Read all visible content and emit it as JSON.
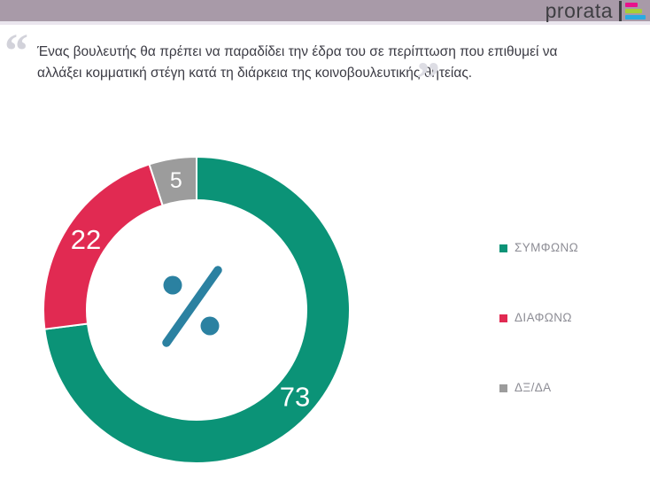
{
  "header": {
    "brand": "prorata",
    "logo_colors": {
      "background": "#a89aa8",
      "text": "#3e3e42",
      "bar_pink": "#e8128c",
      "bar_green": "#a6ce39",
      "bar_blue": "#29abe2"
    }
  },
  "question": {
    "text": "Ένας βουλευτής θα πρέπει να παραδίδει την έδρα του σε περίπτωση που επιθυμεί να αλλάξει κομματική στέγη κατά τη διάρκεια της κοινοβουλευτικής θητείας.",
    "open_quote": "“",
    "close_quote": "”"
  },
  "chart_data": {
    "type": "pie",
    "subtype": "donut",
    "unit": "%",
    "title": "",
    "categories": [
      "ΣΥΜΦΩΝΩ",
      "ΔΙΑΦΩΝΩ",
      "ΔΞ/ΔΑ"
    ],
    "values": [
      73,
      22,
      5
    ],
    "colors": [
      "#0b9377",
      "#e12a52",
      "#9c9c9c"
    ],
    "start_angle_deg": 0,
    "direction": "clockwise",
    "slice_label_color": "#ffffff",
    "slice_separator_color": "#ffffff",
    "center_symbol": "%",
    "center_symbol_color": "#2b81a1",
    "legend_position": "right"
  },
  "legend": {
    "items": [
      {
        "label": "ΣΥΜΦΩΝΩ",
        "color": "#0b9377"
      },
      {
        "label": "ΔΙΑΦΩΝΩ",
        "color": "#e12a52"
      },
      {
        "label": "ΔΞ/ΔΑ",
        "color": "#9c9c9c"
      }
    ]
  }
}
